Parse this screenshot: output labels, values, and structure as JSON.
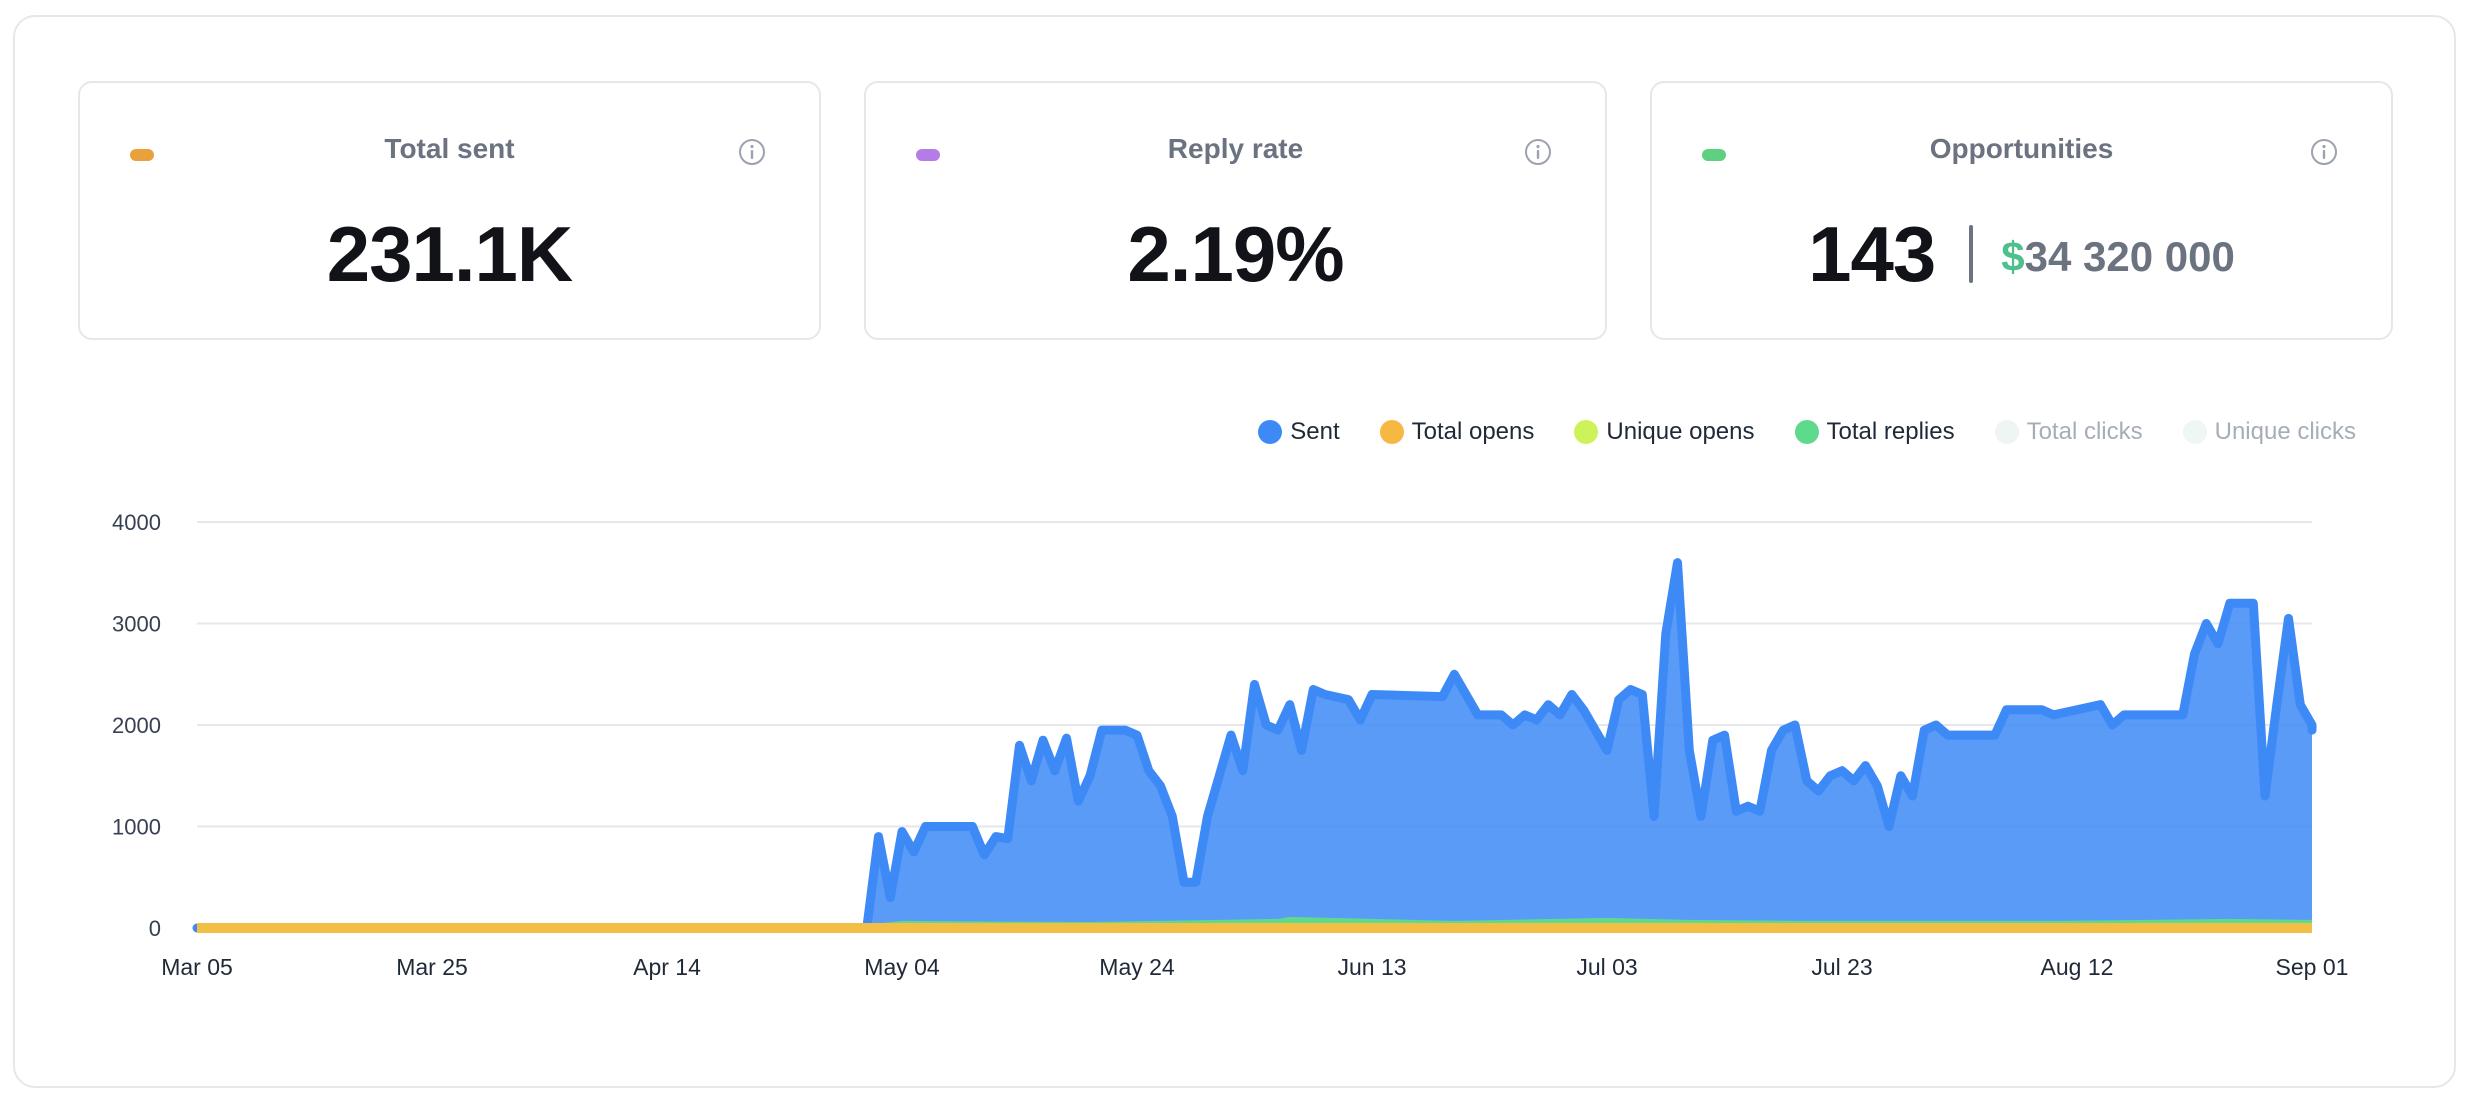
{
  "cards": [
    {
      "title": "Total sent",
      "value": "231.1K",
      "dot_color": "#e9a23b"
    },
    {
      "title": "Reply rate",
      "value": "2.19%",
      "dot_color": "#b57be6"
    },
    {
      "title": "Opportunities",
      "count": "143",
      "currency": "$",
      "amount": "34 320 000",
      "dot_color": "#5fd07f"
    }
  ],
  "info_icon": "info-icon",
  "legend": [
    {
      "label": "Sent",
      "color": "#3d8af7",
      "active": true
    },
    {
      "label": "Total opens",
      "color": "#f5b942",
      "active": true
    },
    {
      "label": "Unique opens",
      "color": "#cdf25a",
      "active": true
    },
    {
      "label": "Total replies",
      "color": "#5fd98c",
      "active": true
    },
    {
      "label": "Total clicks",
      "color": "#eef5f3",
      "active": false
    },
    {
      "label": "Unique clicks",
      "color": "#eef7f4",
      "active": false
    }
  ],
  "chart_data": {
    "type": "area",
    "x_start": "Mar 05",
    "x_end": "Sep 01",
    "x_tick_labels": [
      "Mar 05",
      "Mar 25",
      "Apr 14",
      "May 04",
      "May 24",
      "Jun 13",
      "Jul 03",
      "Jul 23",
      "Aug 12",
      "Sep 01"
    ],
    "y_ticks": [
      0,
      1000,
      2000,
      3000,
      4000
    ],
    "ylim": [
      0,
      4000
    ],
    "grid": true,
    "legend_position": "top-right",
    "series": [
      {
        "name": "Sent",
        "color": "#3d8af7",
        "points": [
          [
            "Mar 05",
            0
          ],
          [
            "May 01",
            0
          ],
          [
            "May 02",
            900
          ],
          [
            "May 03",
            300
          ],
          [
            "May 04",
            950
          ],
          [
            "May 05",
            750
          ],
          [
            "May 06",
            1000
          ],
          [
            "May 10",
            1000
          ],
          [
            "May 11",
            720
          ],
          [
            "May 12",
            900
          ],
          [
            "May 13",
            880
          ],
          [
            "May 14",
            1800
          ],
          [
            "May 15",
            1450
          ],
          [
            "May 16",
            1850
          ],
          [
            "May 17",
            1550
          ],
          [
            "May 18",
            1870
          ],
          [
            "May 19",
            1250
          ],
          [
            "May 20",
            1500
          ],
          [
            "May 21",
            1950
          ],
          [
            "May 23",
            1950
          ],
          [
            "May 24",
            1900
          ],
          [
            "May 25",
            1550
          ],
          [
            "May 26",
            1400
          ],
          [
            "May 27",
            1100
          ],
          [
            "May 28",
            450
          ],
          [
            "May 29",
            450
          ],
          [
            "May 30",
            1100
          ],
          [
            "May 31",
            1500
          ],
          [
            "Jun 01",
            1900
          ],
          [
            "Jun 02",
            1550
          ],
          [
            "Jun 03",
            2400
          ],
          [
            "Jun 04",
            2000
          ],
          [
            "Jun 05",
            1950
          ],
          [
            "Jun 06",
            2200
          ],
          [
            "Jun 07",
            1750
          ],
          [
            "Jun 08",
            2350
          ],
          [
            "Jun 09",
            2300
          ],
          [
            "Jun 11",
            2250
          ],
          [
            "Jun 12",
            2050
          ],
          [
            "Jun 13",
            2300
          ],
          [
            "Jun 19",
            2280
          ],
          [
            "Jun 20",
            2500
          ],
          [
            "Jun 21",
            2300
          ],
          [
            "Jun 22",
            2100
          ],
          [
            "Jun 24",
            2100
          ],
          [
            "Jun 25",
            2000
          ],
          [
            "Jun 26",
            2100
          ],
          [
            "Jun 27",
            2050
          ],
          [
            "Jun 28",
            2200
          ],
          [
            "Jun 29",
            2100
          ],
          [
            "Jun 30",
            2300
          ],
          [
            "Jul 01",
            2150
          ],
          [
            "Jul 02",
            1950
          ],
          [
            "Jul 03",
            1750
          ],
          [
            "Jul 04",
            2250
          ],
          [
            "Jul 05",
            2350
          ],
          [
            "Jul 06",
            2300
          ],
          [
            "Jul 07",
            1100
          ],
          [
            "Jul 08",
            2900
          ],
          [
            "Jul 09",
            3600
          ],
          [
            "Jul 10",
            1750
          ],
          [
            "Jul 11",
            1100
          ],
          [
            "Jul 12",
            1850
          ],
          [
            "Jul 13",
            1900
          ],
          [
            "Jul 14",
            1150
          ],
          [
            "Jul 15",
            1200
          ],
          [
            "Jul 16",
            1150
          ],
          [
            "Jul 17",
            1750
          ],
          [
            "Jul 18",
            1950
          ],
          [
            "Jul 19",
            2000
          ],
          [
            "Jul 20",
            1450
          ],
          [
            "Jul 21",
            1350
          ],
          [
            "Jul 22",
            1500
          ],
          [
            "Jul 23",
            1550
          ],
          [
            "Jul 24",
            1450
          ],
          [
            "Jul 25",
            1600
          ],
          [
            "Jul 26",
            1400
          ],
          [
            "Jul 27",
            1000
          ],
          [
            "Jul 28",
            1500
          ],
          [
            "Jul 29",
            1300
          ],
          [
            "Jul 30",
            1950
          ],
          [
            "Jul 31",
            2000
          ],
          [
            "Aug 01",
            1900
          ],
          [
            "Aug 05",
            1900
          ],
          [
            "Aug 06",
            2150
          ],
          [
            "Aug 09",
            2150
          ],
          [
            "Aug 10",
            2100
          ],
          [
            "Aug 14",
            2200
          ],
          [
            "Aug 15",
            2000
          ],
          [
            "Aug 16",
            2100
          ],
          [
            "Aug 21",
            2100
          ],
          [
            "Aug 22",
            2700
          ],
          [
            "Aug 23",
            3000
          ],
          [
            "Aug 24",
            2800
          ],
          [
            "Aug 25",
            3200
          ],
          [
            "Aug 27",
            3200
          ],
          [
            "Aug 28",
            1300
          ],
          [
            "Aug 29",
            2200
          ],
          [
            "Aug 30",
            3050
          ],
          [
            "Aug 31",
            2200
          ],
          [
            "Sep 01",
            2000
          ],
          [
            "Sep 05",
            2000
          ],
          [
            "Sep 06",
            1950
          ]
        ]
      },
      {
        "name": "Total opens",
        "color": "#f5b942",
        "points": [
          [
            "Mar 05",
            0
          ],
          [
            "Sep 06",
            0
          ]
        ]
      },
      {
        "name": "Unique opens",
        "color": "#cdf25a",
        "points": [
          [
            "Mar 05",
            0
          ],
          [
            "Sep 06",
            0
          ]
        ]
      },
      {
        "name": "Total replies",
        "color": "#5fd98c",
        "points": [
          [
            "Mar 05",
            0
          ],
          [
            "May 01",
            0
          ],
          [
            "May 04",
            40
          ],
          [
            "May 20",
            30
          ],
          [
            "Jun 05",
            60
          ],
          [
            "Jun 06",
            80
          ],
          [
            "Jun 20",
            40
          ],
          [
            "Jul 03",
            70
          ],
          [
            "Jul 10",
            50
          ],
          [
            "Jul 20",
            40
          ],
          [
            "Aug 10",
            40
          ],
          [
            "Aug 25",
            60
          ],
          [
            "Sep 06",
            50
          ]
        ]
      }
    ]
  }
}
